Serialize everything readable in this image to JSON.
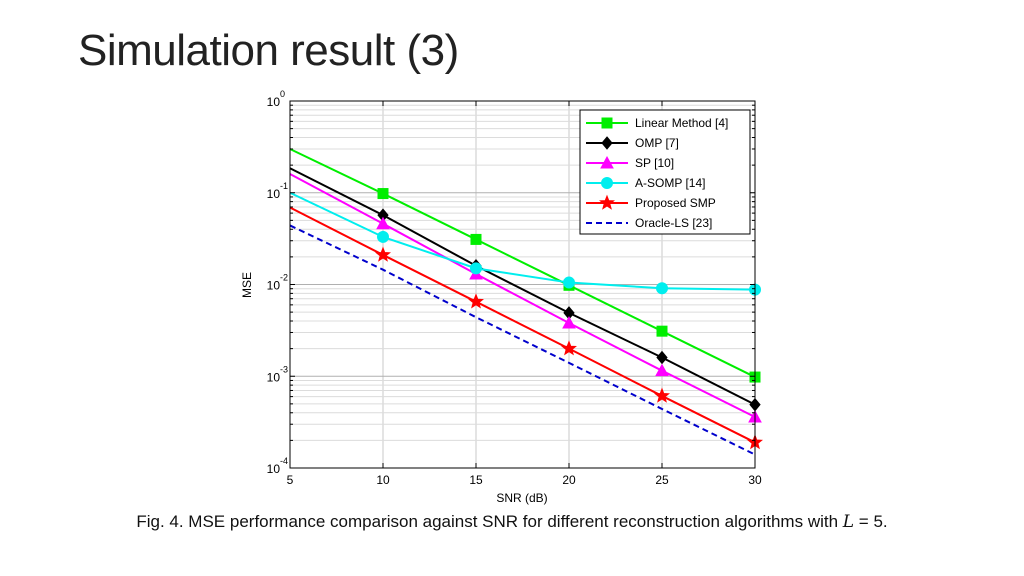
{
  "slide": {
    "title": "Simulation result (3)",
    "caption_text": "Fig. 4. MSE performance comparison against SNR for different reconstruction algorithms with ",
    "caption_var": "L",
    "caption_tail": " = 5."
  },
  "chart_data": {
    "type": "line",
    "title": "",
    "xlabel": "SNR (dB)",
    "ylabel": "MSE",
    "xlim": [
      5,
      30
    ],
    "ylim": [
      0.0001,
      1
    ],
    "yscale": "log",
    "grid": true,
    "legend_position": "top-right",
    "x_ticks": [
      5,
      10,
      15,
      20,
      25,
      30
    ],
    "y_ticks": [
      {
        "base": "10",
        "exp": "0"
      },
      {
        "base": "10",
        "exp": "-1"
      },
      {
        "base": "10",
        "exp": "-2"
      },
      {
        "base": "10",
        "exp": "-3"
      },
      {
        "base": "10",
        "exp": "-4"
      }
    ],
    "series": [
      {
        "name": "Linear Method [4]",
        "color": "#00ee00",
        "marker": "square",
        "dash": "solid",
        "x": [
          5,
          10,
          15,
          20,
          25,
          30
        ],
        "y": [
          0.3,
          0.098,
          0.031,
          0.0098,
          0.0031,
          0.00098
        ],
        "marker_from": 1
      },
      {
        "name": "OMP [7]",
        "color": "#000000",
        "marker": "diamond",
        "dash": "solid",
        "x": [
          5,
          10,
          15,
          20,
          25,
          30
        ],
        "y": [
          0.185,
          0.057,
          0.016,
          0.0049,
          0.0016,
          0.00049
        ],
        "marker_from": 1
      },
      {
        "name": "SP [10]",
        "color": "#ff00ff",
        "marker": "triangle",
        "dash": "solid",
        "x": [
          5,
          10,
          15,
          20,
          25,
          30
        ],
        "y": [
          0.16,
          0.046,
          0.013,
          0.0038,
          0.00115,
          0.00036
        ],
        "marker_from": 1
      },
      {
        "name": "A-SOMP [14]",
        "color": "#00eeee",
        "marker": "circle",
        "dash": "solid",
        "x": [
          5,
          10,
          15,
          20,
          25,
          30
        ],
        "y": [
          0.1,
          0.033,
          0.015,
          0.0105,
          0.0091,
          0.0088
        ],
        "marker_from": 1
      },
      {
        "name": "Proposed SMP",
        "color": "#ff0000",
        "marker": "star",
        "dash": "solid",
        "x": [
          5,
          10,
          15,
          20,
          25,
          30
        ],
        "y": [
          0.069,
          0.021,
          0.0065,
          0.002,
          0.00061,
          0.00019
        ],
        "marker_from": 1
      },
      {
        "name": "Oracle-LS [23]",
        "color": "#0000cc",
        "marker": "none",
        "dash": "dashed",
        "x": [
          5,
          10,
          15,
          20,
          25,
          30
        ],
        "y": [
          0.044,
          0.0145,
          0.0044,
          0.0014,
          0.00044,
          0.00014
        ],
        "marker_from": 6
      }
    ]
  }
}
